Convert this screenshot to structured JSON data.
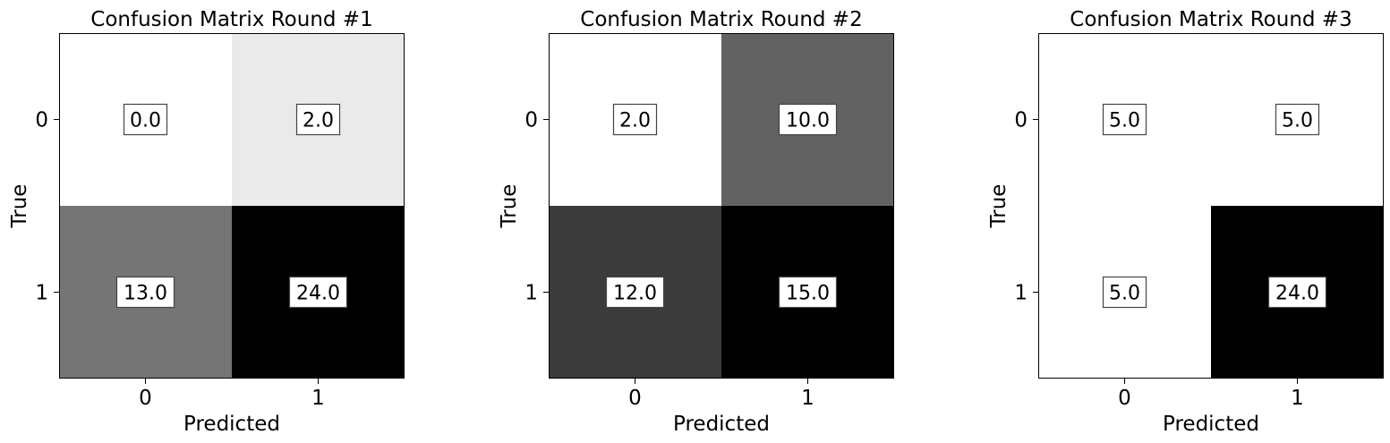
{
  "chart_data": [
    {
      "type": "heatmap",
      "title": "Confusion Matrix Round #1",
      "xlabel": "Predicted",
      "ylabel": "True",
      "x_categories": [
        "0",
        "1"
      ],
      "y_categories": [
        "0",
        "1"
      ],
      "values": [
        [
          0.0,
          2.0
        ],
        [
          13.0,
          24.0
        ]
      ],
      "value_labels": [
        [
          "0.0",
          "2.0"
        ],
        [
          "13.0",
          "24.0"
        ]
      ],
      "colormap": "gray_r",
      "grid": false
    },
    {
      "type": "heatmap",
      "title": "Confusion Matrix Round #2",
      "xlabel": "Predicted",
      "ylabel": "True",
      "x_categories": [
        "0",
        "1"
      ],
      "y_categories": [
        "0",
        "1"
      ],
      "values": [
        [
          2.0,
          10.0
        ],
        [
          12.0,
          15.0
        ]
      ],
      "value_labels": [
        [
          "2.0",
          "10.0"
        ],
        [
          "12.0",
          "15.0"
        ]
      ],
      "colormap": "gray_r",
      "grid": false
    },
    {
      "type": "heatmap",
      "title": "Confusion Matrix Round #3",
      "xlabel": "Predicted",
      "ylabel": "True",
      "x_categories": [
        "0",
        "1"
      ],
      "y_categories": [
        "0",
        "1"
      ],
      "values": [
        [
          5.0,
          5.0
        ],
        [
          5.0,
          24.0
        ]
      ],
      "value_labels": [
        [
          "5.0",
          "5.0"
        ],
        [
          "5.0",
          "24.0"
        ]
      ],
      "colormap": "gray_r",
      "grid": false
    }
  ]
}
